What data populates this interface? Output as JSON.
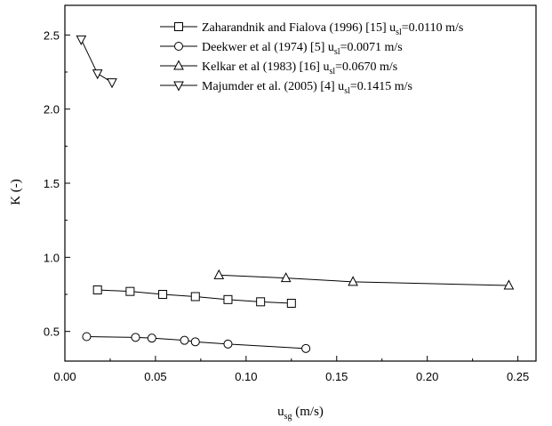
{
  "chart_data": {
    "type": "line",
    "xlabel": {
      "base": "u",
      "sub": "sg",
      "tail": " (m/s)"
    },
    "ylabel": "K (-)",
    "xlim": [
      0.0,
      0.26
    ],
    "ylim": [
      0.3,
      2.7
    ],
    "xticks": [
      "0.00",
      "0.05",
      "0.10",
      "0.15",
      "0.20",
      "0.25"
    ],
    "xtick_values": [
      0.0,
      0.05,
      0.1,
      0.15,
      0.2,
      0.25
    ],
    "yticks": [
      "0.5",
      "1.0",
      "1.5",
      "2.0",
      "2.5"
    ],
    "ytick_values": [
      0.5,
      1.0,
      1.5,
      2.0,
      2.5
    ],
    "grid": false,
    "legend_position": "top-right",
    "series": [
      {
        "name": "Zaharandnik and Fialova (1996) [15] u",
        "name_sub": "sl",
        "name_tail": "=0.0110 m/s",
        "marker": "square",
        "x": [
          0.018,
          0.036,
          0.054,
          0.072,
          0.09,
          0.108,
          0.125
        ],
        "y": [
          0.78,
          0.77,
          0.75,
          0.735,
          0.715,
          0.7,
          0.69
        ]
      },
      {
        "name": "Deekwer et al (1974) [5] u",
        "name_sub": "sl",
        "name_tail": "=0.0071 m/s",
        "marker": "circle",
        "x": [
          0.012,
          0.039,
          0.048,
          0.066,
          0.072,
          0.09,
          0.133
        ],
        "y": [
          0.465,
          0.46,
          0.455,
          0.44,
          0.43,
          0.415,
          0.385
        ]
      },
      {
        "name": "Kelkar et al (1983) [16] u",
        "name_sub": "sl",
        "name_tail": "=0.0670 m/s",
        "marker": "triangle-up",
        "x": [
          0.085,
          0.122,
          0.159,
          0.245
        ],
        "y": [
          0.88,
          0.86,
          0.835,
          0.81
        ]
      },
      {
        "name": "Majumder et al. (2005) [4] u",
        "name_sub": "sl",
        "name_tail": "=0.1415 m/s",
        "marker": "triangle-down",
        "x": [
          0.009,
          0.018,
          0.026
        ],
        "y": [
          2.47,
          2.24,
          2.18
        ]
      }
    ]
  }
}
